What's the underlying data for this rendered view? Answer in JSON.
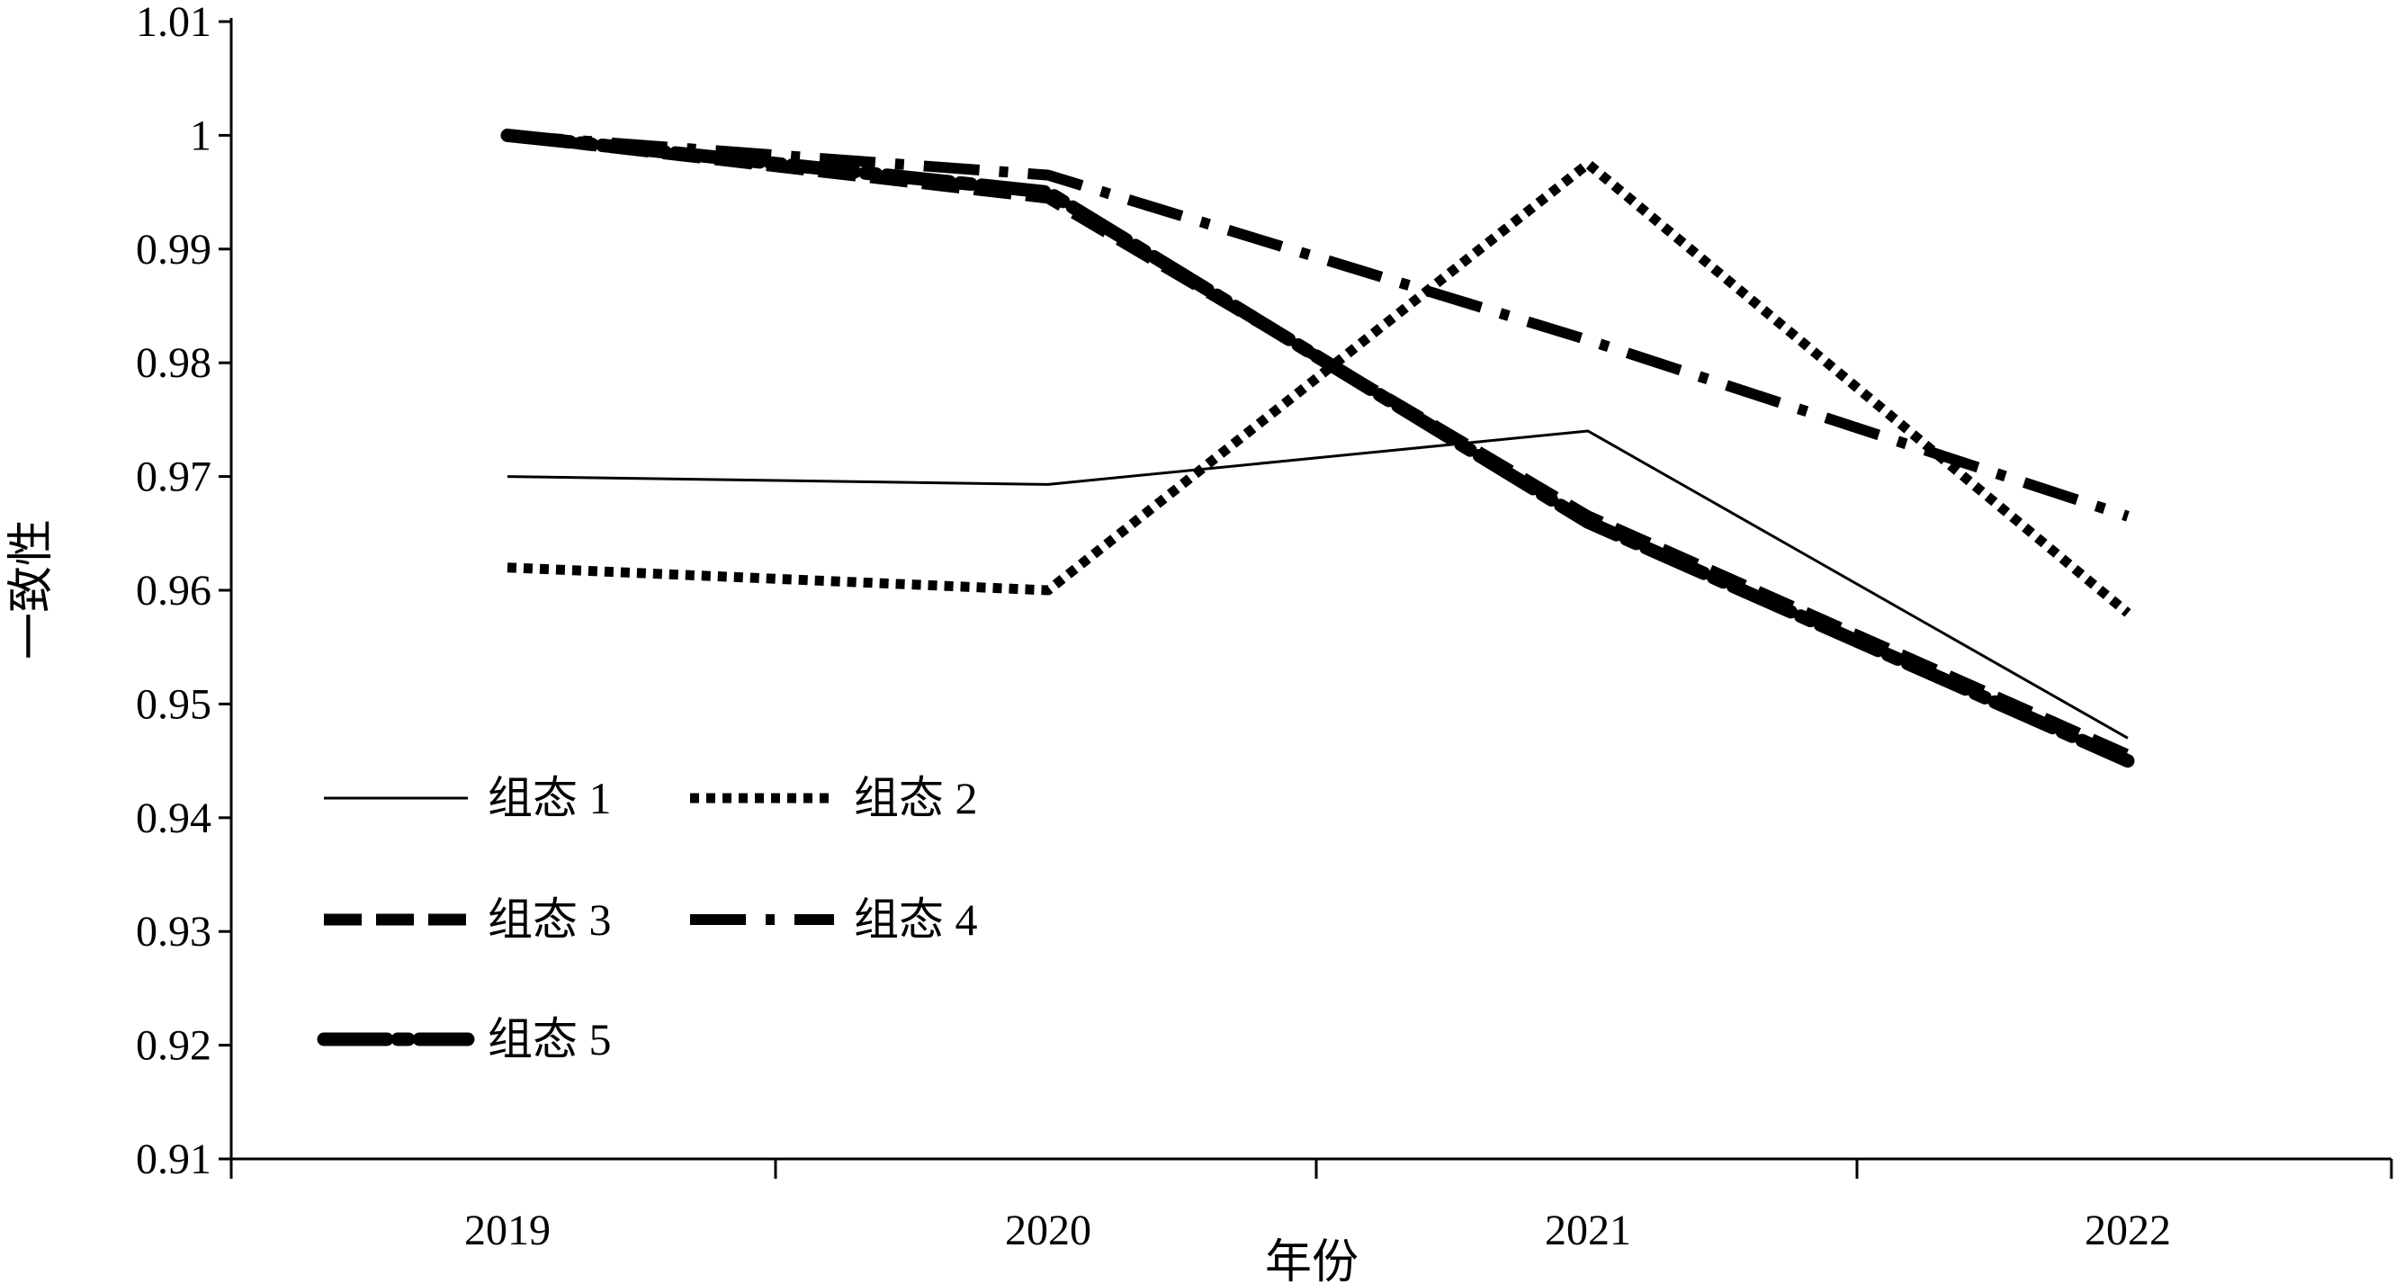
{
  "chart_data": {
    "type": "line",
    "title": "",
    "xlabel": "年份",
    "ylabel": "一致性",
    "categories": [
      "2019",
      "2020",
      "2021",
      "2022"
    ],
    "ylim": [
      0.91,
      1.01
    ],
    "yticks": [
      "1.01",
      "1",
      "0.99",
      "0.98",
      "0.97",
      "0.96",
      "0.95",
      "0.94",
      "0.93",
      "0.92",
      "0.91"
    ],
    "grid": false,
    "legend_position": "bottom-left",
    "series": [
      {
        "name": "组态 1",
        "style": "solid",
        "values": [
          0.97,
          0.9693,
          0.974,
          0.947
        ]
      },
      {
        "name": "组态 2",
        "style": "dotted",
        "values": [
          0.962,
          0.96,
          0.9975,
          0.958
        ]
      },
      {
        "name": "组态 3",
        "style": "dashed",
        "values": [
          1.0,
          0.9945,
          0.9665,
          0.9455
        ]
      },
      {
        "name": "组态 4",
        "style": "dash-dot",
        "values": [
          1.0,
          0.9965,
          0.982,
          0.9665
        ]
      },
      {
        "name": "组态 5",
        "style": "long-dash-dot",
        "values": [
          1.0,
          0.995,
          0.966,
          0.945
        ]
      }
    ]
  }
}
